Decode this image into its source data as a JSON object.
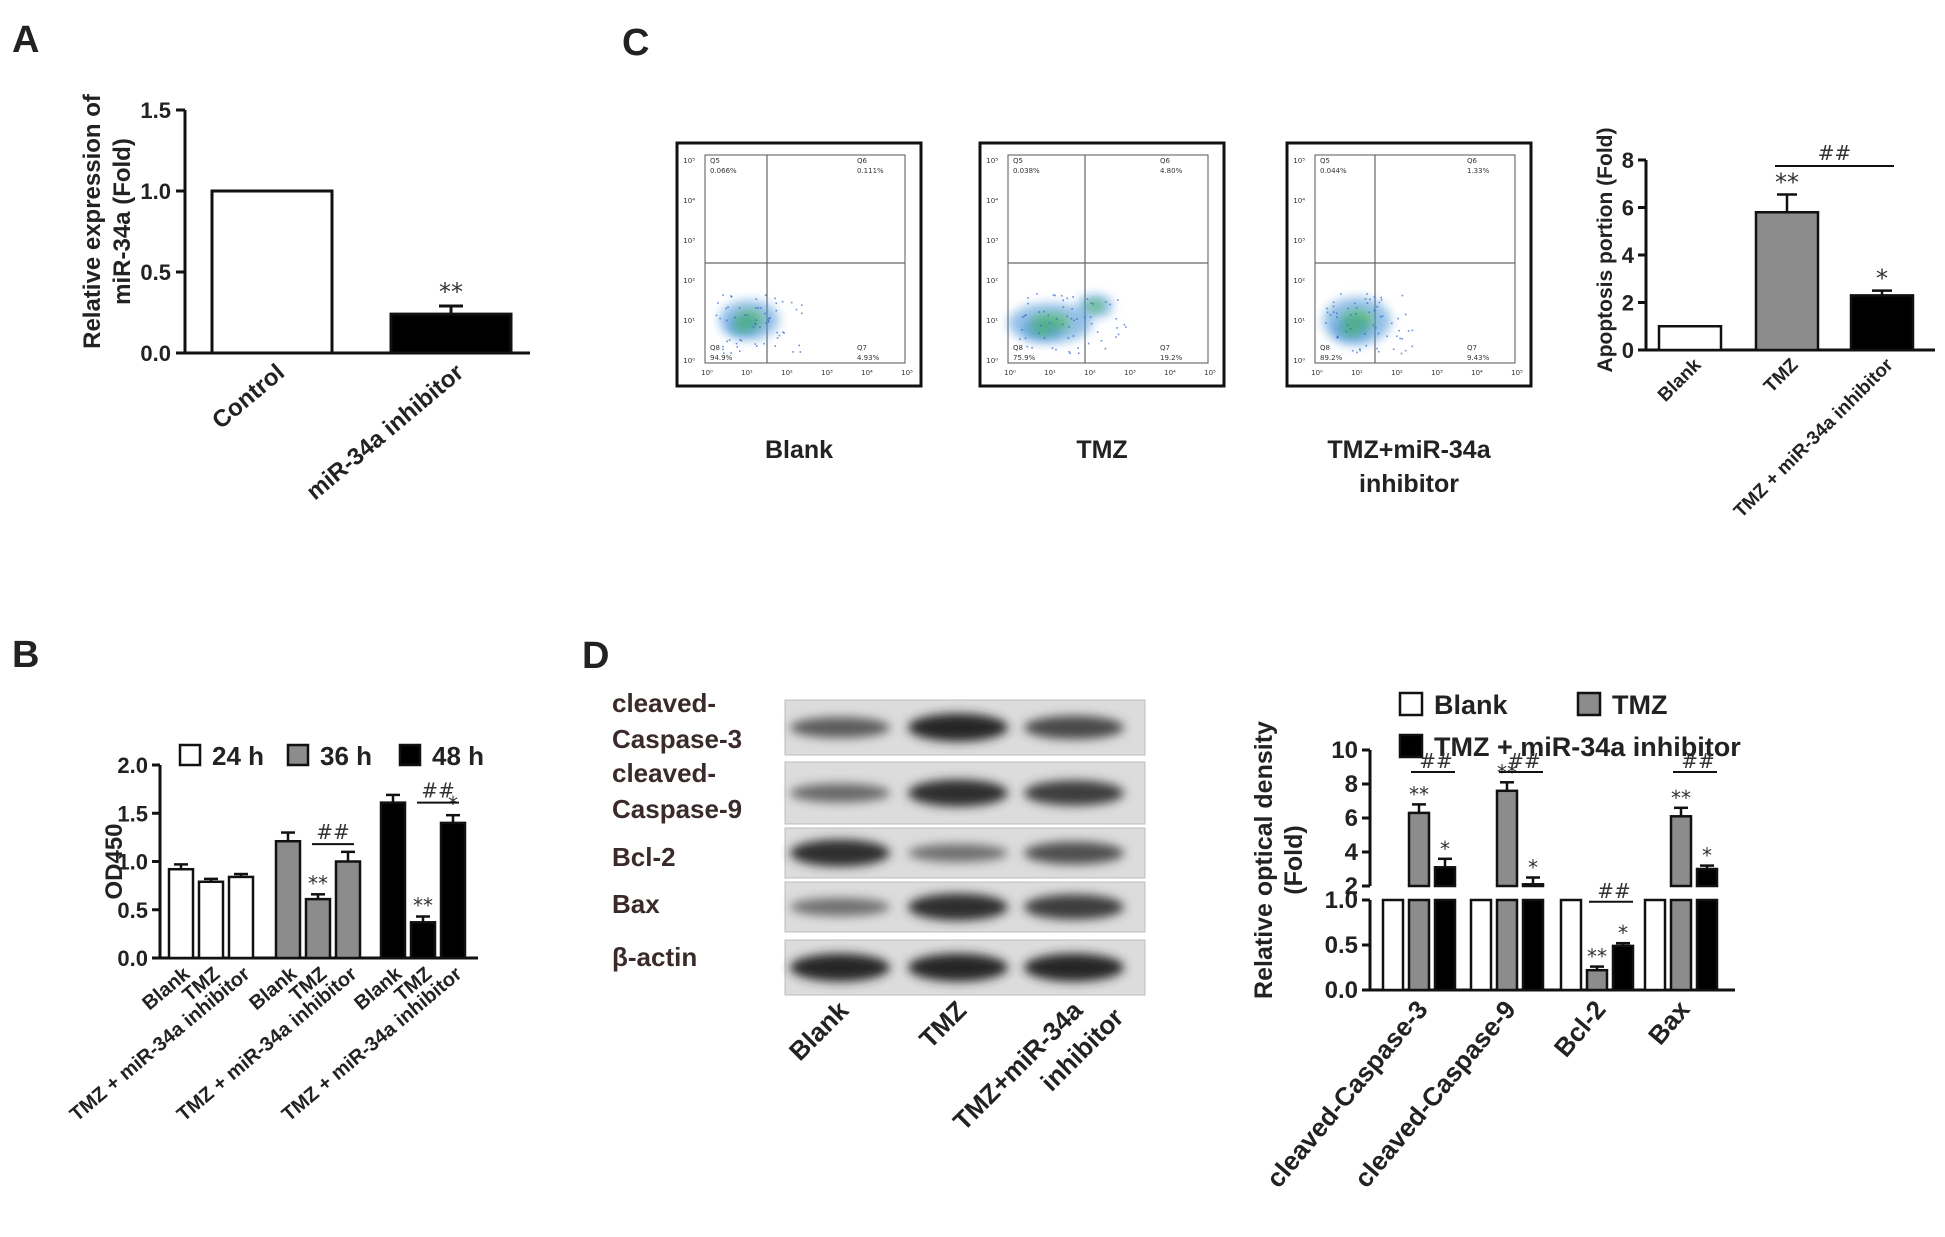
{
  "panels": {
    "a": "A",
    "b": "B",
    "c": "C",
    "d": "D"
  },
  "chart_data": [
    {
      "id": "A",
      "type": "bar",
      "categories": [
        "Control",
        "miR-34a inhibitor"
      ],
      "values": [
        1.0,
        0.24
      ],
      "errors": [
        0,
        0.05
      ],
      "ylabel": "Relative expression of miR-34a (Fold)",
      "ylabel_lines": [
        "Relative expression of",
        "miR-34a (Fold)"
      ],
      "ylim": [
        0,
        1.5
      ],
      "yticks": [
        "0.0",
        "0.5",
        "1.0",
        "1.5"
      ],
      "fills": [
        "#ffffff",
        "#000000"
      ],
      "annotations": [
        {
          "bar": 1,
          "text": "**"
        }
      ]
    },
    {
      "id": "B",
      "type": "bar",
      "ylabel": "OD450",
      "ylim": [
        0,
        2.0
      ],
      "yticks": [
        "0.0",
        "0.5",
        "1.0",
        "1.5",
        "2.0"
      ],
      "legend": [
        {
          "name": "24 h",
          "color": "#ffffff"
        },
        {
          "name": "36 h",
          "color": "#8c8c8c"
        },
        {
          "name": "48 h",
          "color": "#000000"
        }
      ],
      "groups": [
        {
          "name": "24 h",
          "categories": [
            "Blank",
            "TMZ",
            "TMZ + miR-34a inhibitor"
          ],
          "values": [
            0.92,
            0.79,
            0.84
          ],
          "errors": [
            0.05,
            0.03,
            0.03
          ],
          "annotations": [
            "",
            "",
            ""
          ]
        },
        {
          "name": "36 h",
          "categories": [
            "Blank",
            "TMZ",
            "TMZ + miR-34a inhibitor"
          ],
          "values": [
            1.21,
            0.61,
            1.0
          ],
          "errors": [
            0.09,
            0.05,
            0.1
          ],
          "annotations": [
            "",
            "**",
            ""
          ],
          "bracket": "##"
        },
        {
          "name": "48 h",
          "categories": [
            "Blank",
            "TMZ",
            "TMZ + miR-34a inhibitor"
          ],
          "values": [
            1.61,
            0.37,
            1.4
          ],
          "errors": [
            0.08,
            0.06,
            0.08
          ],
          "annotations": [
            "",
            "**",
            "*"
          ],
          "bracket": "##"
        }
      ]
    },
    {
      "id": "C-flow",
      "type": "scatter",
      "plots": [
        {
          "name": "Blank",
          "q": [
            "Q5",
            "Q6",
            "Q8",
            "Q7"
          ],
          "v": [
            "0.066%",
            "0.111%",
            "94.9%",
            "4.93%"
          ]
        },
        {
          "name": "TMZ",
          "q": [
            "Q5",
            "Q6",
            "Q8",
            "Q7"
          ],
          "v": [
            "0.038%",
            "4.80%",
            "75.9%",
            "19.2%"
          ]
        },
        {
          "name": "TMZ+miR-34a inhibitor",
          "name_lines": [
            "TMZ+miR-34a",
            "inhibitor"
          ],
          "q": [
            "Q5",
            "Q6",
            "Q8",
            "Q7"
          ],
          "v": [
            "0.044%",
            "1.33%",
            "89.2%",
            "9.43%"
          ]
        }
      ],
      "axis_ticks": [
        "10⁰",
        "10¹",
        "10²",
        "10³",
        "10⁴",
        "10⁵"
      ]
    },
    {
      "id": "C",
      "type": "bar",
      "categories": [
        "Blank",
        "TMZ",
        "TMZ + miR-34a inhibitor"
      ],
      "values": [
        1.0,
        5.8,
        2.3
      ],
      "errors": [
        0,
        0.75,
        0.2
      ],
      "ylabel": "Apoptosis portion (Fold)",
      "ylim": [
        0,
        8
      ],
      "yticks": [
        "0",
        "2",
        "4",
        "6",
        "8"
      ],
      "fills": [
        "#ffffff",
        "#8c8c8c",
        "#000000"
      ],
      "annotations": [
        "",
        "**",
        "*"
      ],
      "bracket": "##"
    },
    {
      "id": "D-blot",
      "type": "table",
      "rows": [
        "cleaved-\nCaspase-3",
        "cleaved-\nCaspase-9",
        "Bcl-2",
        "Bax",
        "β-actin"
      ],
      "row_lines": [
        [
          "cleaved-",
          "Caspase-3"
        ],
        [
          "cleaved-",
          "Caspase-9"
        ],
        [
          "Bcl-2"
        ],
        [
          "Bax"
        ],
        [
          "β-actin"
        ]
      ],
      "lanes": [
        "Blank",
        "TMZ",
        "TMZ+miR-34a inhibitor"
      ],
      "lane_lines": [
        [
          "Blank"
        ],
        [
          "TMZ"
        ],
        [
          "TMZ+miR-34a",
          "inhibitor"
        ]
      ],
      "intensity": [
        [
          0.6,
          1.0,
          0.75
        ],
        [
          0.5,
          0.95,
          0.85
        ],
        [
          0.95,
          0.45,
          0.7
        ],
        [
          0.45,
          0.95,
          0.85
        ],
        [
          1.0,
          1.0,
          1.0
        ]
      ]
    },
    {
      "id": "D",
      "type": "bar",
      "categories": [
        "cleaved-Caspase-3",
        "cleaved-Caspase-9",
        "Bcl-2",
        "Bax"
      ],
      "series": [
        {
          "name": "Blank",
          "color": "#ffffff",
          "values": [
            1.0,
            1.0,
            1.0,
            1.0
          ],
          "errors": [
            0,
            0,
            0,
            0
          ],
          "annotations": [
            "",
            "",
            "",
            ""
          ]
        },
        {
          "name": "TMZ",
          "color": "#8c8c8c",
          "values": [
            6.3,
            7.6,
            0.22,
            6.1
          ],
          "errors": [
            0.5,
            0.5,
            0.04,
            0.5
          ],
          "annotations": [
            "**",
            "**",
            "**",
            "**"
          ]
        },
        {
          "name": "TMZ + miR-34a inhibitor",
          "color": "#000000",
          "values": [
            3.1,
            2.1,
            0.49,
            3.0
          ],
          "errors": [
            0.5,
            0.4,
            0.03,
            0.2
          ],
          "annotations": [
            "*",
            "*",
            "*",
            "*"
          ]
        }
      ],
      "brackets": [
        "##",
        "##",
        "##",
        "##"
      ],
      "ylabel": "Relative optical density (Fold)",
      "ylabel_lines": [
        "Relative optical density",
        "(Fold)"
      ],
      "ylim_lower": [
        0,
        1.0
      ],
      "ylim_upper": [
        2,
        10
      ],
      "yticks_lower": [
        "0.0",
        "0.5",
        "1.0"
      ],
      "yticks_upper": [
        "2",
        "4",
        "6",
        "8",
        "10"
      ]
    }
  ]
}
